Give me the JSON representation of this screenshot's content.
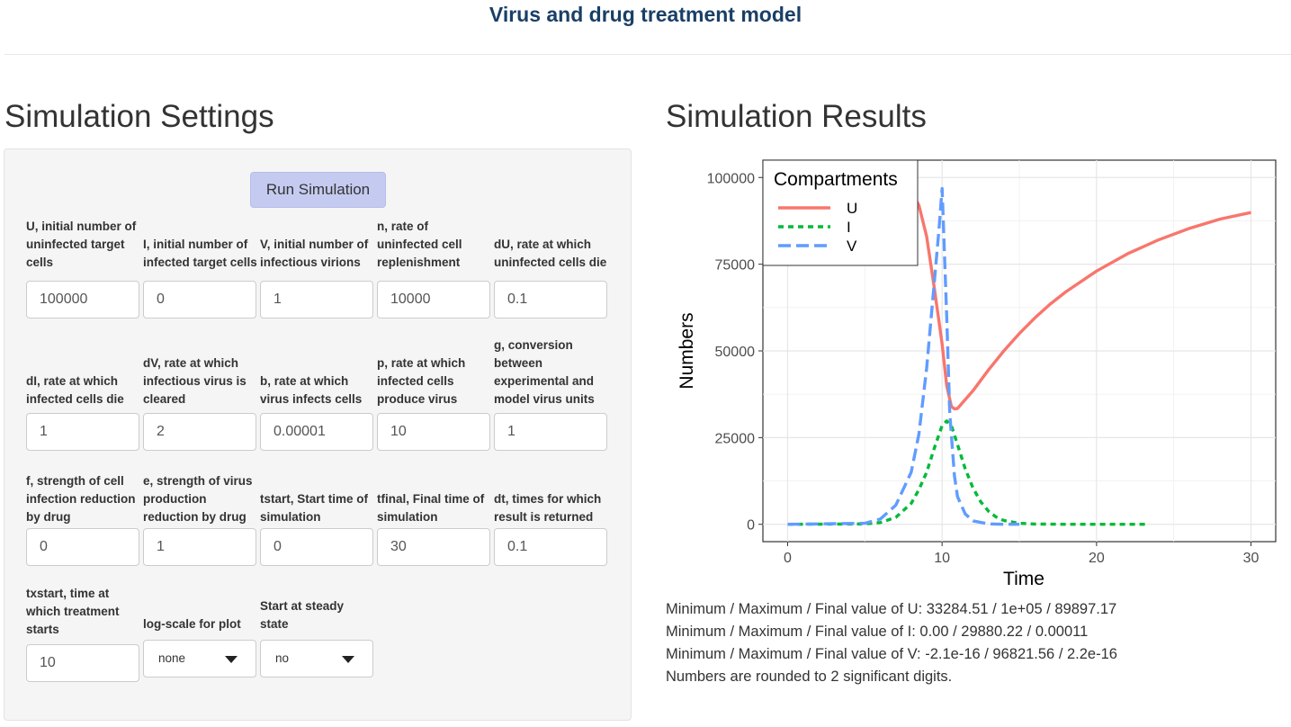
{
  "app": {
    "title": "Virus and drug treatment model"
  },
  "settings": {
    "heading": "Simulation Settings",
    "run_button": "Run Simulation",
    "fields": [
      {
        "label": "U, initial number of uninfected target cells",
        "value": "100000"
      },
      {
        "label": "I, initial number of infected target cells",
        "value": "0"
      },
      {
        "label": "V, initial number of infectious virions",
        "value": "1"
      },
      {
        "label": "n, rate of uninfected cell replenishment",
        "value": "10000"
      },
      {
        "label": "dU, rate at which uninfected cells die",
        "value": "0.1"
      },
      {
        "label": "dI, rate at which infected cells die",
        "value": "1"
      },
      {
        "label": "dV, rate at which infectious virus is cleared",
        "value": "2"
      },
      {
        "label": "b, rate at which virus infects cells",
        "value": "0.00001"
      },
      {
        "label": "p, rate at which infected cells produce virus",
        "value": "10"
      },
      {
        "label": "g, conversion between experimental and model virus units",
        "value": "1"
      },
      {
        "label": "f, strength of cell infection reduction by drug",
        "value": "0"
      },
      {
        "label": "e, strength of virus production reduction by drug",
        "value": "1"
      },
      {
        "label": "tstart, Start time of simulation",
        "value": "0"
      },
      {
        "label": "tfinal, Final time of simulation",
        "value": "30"
      },
      {
        "label": "dt, times for which result is returned",
        "value": "0.1"
      },
      {
        "label": "txstart, time at which treatment starts",
        "value": "10"
      }
    ],
    "log_scale": {
      "label": "log-scale for plot",
      "selected": "none"
    },
    "steady_state": {
      "label": "Start at steady state",
      "selected": "no"
    }
  },
  "results": {
    "heading": "Simulation Results",
    "summary": [
      "Minimum / Maximum / Final value of U: 33284.51 / 1e+05 / 89897.17",
      "Minimum / Maximum / Final value of I: 0.00 / 29880.22 / 0.00011",
      "Minimum / Maximum / Final value of V: -2.1e-16 / 96821.56 / 2.2e-16",
      "Numbers are rounded to 2 significant digits."
    ]
  },
  "chart_data": {
    "type": "line",
    "xlabel": "Time",
    "ylabel": "Numbers",
    "xlim": [
      -1.6,
      31.6
    ],
    "ylim": [
      -5000,
      105000
    ],
    "x_ticks": [
      0,
      10,
      20,
      30
    ],
    "y_ticks": [
      0,
      25000,
      50000,
      75000,
      100000
    ],
    "x_tick_labels": [
      "0",
      "10",
      "20",
      "30"
    ],
    "y_tick_labels": [
      "0",
      "25000",
      "50000",
      "75000",
      "100000"
    ],
    "grid": true,
    "legend": {
      "title": "Compartments",
      "position": "top-left"
    },
    "series": [
      {
        "name": "U",
        "color": "#f8766d",
        "dash": "solid",
        "points": [
          [
            0,
            100000
          ],
          [
            7,
            99000
          ],
          [
            8,
            96000
          ],
          [
            8.5,
            92000
          ],
          [
            9,
            83000
          ],
          [
            9.5,
            68000
          ],
          [
            10,
            52000
          ],
          [
            10.3,
            40000
          ],
          [
            10.6,
            34000
          ],
          [
            10.8,
            33300
          ],
          [
            11,
            33400
          ],
          [
            12,
            38500
          ],
          [
            13,
            44500
          ],
          [
            14,
            50000
          ],
          [
            15,
            55000
          ],
          [
            16,
            59500
          ],
          [
            17,
            63500
          ],
          [
            18,
            67000
          ],
          [
            20,
            73000
          ],
          [
            22,
            78000
          ],
          [
            24,
            82000
          ],
          [
            26,
            85300
          ],
          [
            28,
            88000
          ],
          [
            30,
            89900
          ]
        ]
      },
      {
        "name": "I",
        "color": "#00ba38",
        "dash": "6,5",
        "points": [
          [
            0,
            0
          ],
          [
            5,
            100
          ],
          [
            6,
            500
          ],
          [
            7,
            2000
          ],
          [
            8,
            6000
          ],
          [
            8.5,
            10000
          ],
          [
            9,
            15000
          ],
          [
            9.5,
            22000
          ],
          [
            10,
            28500
          ],
          [
            10.3,
            29800
          ],
          [
            10.6,
            28500
          ],
          [
            11,
            23000
          ],
          [
            11.5,
            16000
          ],
          [
            12,
            10500
          ],
          [
            12.5,
            6500
          ],
          [
            13,
            3800
          ],
          [
            13.5,
            2100
          ],
          [
            14,
            1100
          ],
          [
            15,
            300
          ],
          [
            16,
            80
          ],
          [
            18,
            5
          ],
          [
            20,
            0
          ],
          [
            23.2,
            0
          ]
        ]
      },
      {
        "name": "V",
        "color": "#619cff",
        "dash": "14,6",
        "points": [
          [
            0,
            0
          ],
          [
            5,
            300
          ],
          [
            6,
            1500
          ],
          [
            7,
            5500
          ],
          [
            8,
            15000
          ],
          [
            8.5,
            26000
          ],
          [
            9,
            45000
          ],
          [
            9.5,
            70000
          ],
          [
            9.8,
            85000
          ],
          [
            10,
            96800
          ],
          [
            10.3,
            60000
          ],
          [
            10.5,
            32000
          ],
          [
            10.8,
            14000
          ],
          [
            11,
            8000
          ],
          [
            11.5,
            3000
          ],
          [
            12,
            1000
          ],
          [
            13,
            100
          ],
          [
            14,
            10
          ],
          [
            15,
            0
          ]
        ]
      }
    ]
  }
}
